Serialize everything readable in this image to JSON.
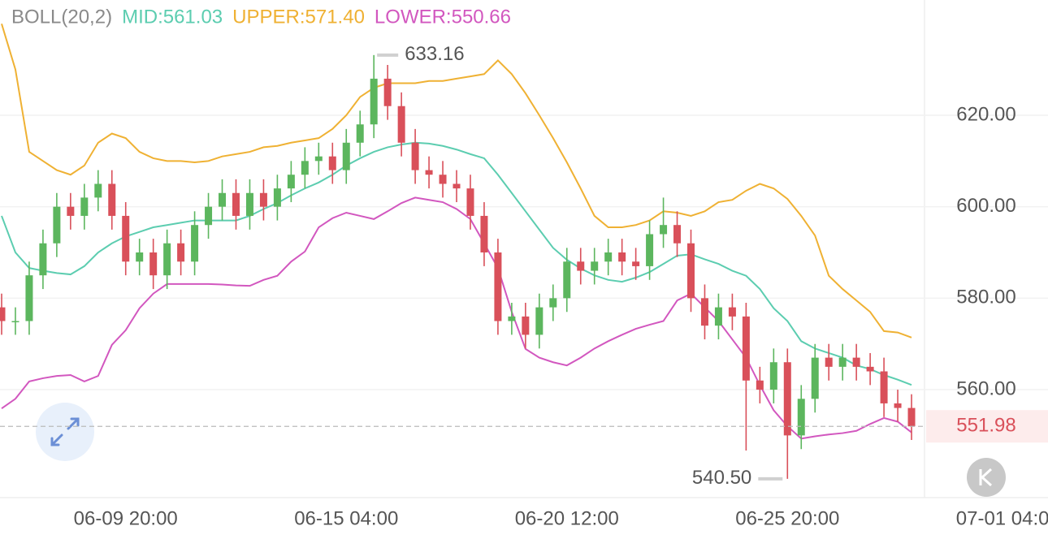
{
  "chart_data": {
    "type": "candlestick",
    "indicator": "BOLL(20,2)",
    "categories": [
      null,
      null,
      null,
      null,
      null,
      null,
      null,
      null,
      null,
      null,
      null,
      null,
      null,
      null,
      null,
      null,
      null,
      null,
      null,
      null,
      null,
      null,
      null,
      null,
      null,
      null,
      null,
      null,
      null,
      null,
      null,
      null,
      null,
      null,
      null,
      null,
      null,
      null,
      null,
      null,
      null,
      null,
      null,
      null,
      null,
      null,
      null,
      null,
      null,
      null,
      null,
      null,
      null,
      null,
      null,
      null,
      null,
      null,
      null,
      null,
      null,
      null,
      null,
      null,
      null,
      null,
      null
    ],
    "open": [
      578,
      575,
      575,
      585,
      592,
      600,
      598,
      602,
      605,
      598,
      588,
      590,
      585,
      592,
      588,
      596,
      600,
      603,
      598,
      603,
      600,
      604,
      607,
      610,
      611,
      608,
      614,
      618,
      628,
      622,
      614,
      608,
      607,
      605,
      604,
      598,
      590,
      575,
      576,
      572,
      578,
      580,
      588,
      586,
      588,
      590,
      588,
      587,
      594,
      596,
      592,
      580,
      574,
      578,
      576,
      562,
      560,
      566,
      550,
      558,
      567,
      565,
      567,
      565,
      564,
      557,
      556
    ],
    "high": [
      581,
      578,
      588,
      595,
      603,
      603,
      605,
      608,
      608,
      601,
      593,
      593,
      595,
      595,
      599,
      603,
      606,
      606,
      606,
      606,
      607,
      610,
      613,
      614,
      614,
      617,
      621,
      633.16,
      631,
      625,
      617,
      611,
      610,
      608,
      607,
      601,
      593,
      579,
      579,
      581,
      583,
      591,
      591,
      591,
      593,
      593,
      591,
      597,
      602,
      599,
      595,
      583,
      581,
      581,
      579,
      565,
      569,
      569,
      561,
      570,
      570,
      570,
      570,
      568,
      567,
      560,
      559
    ],
    "low": [
      572,
      572,
      572,
      582,
      589,
      595,
      595,
      599,
      595,
      585,
      585,
      582,
      582,
      585,
      585,
      593,
      597,
      595,
      595,
      597,
      597,
      601,
      604,
      607,
      605,
      605,
      611,
      615,
      619,
      611,
      605,
      604,
      602,
      601,
      595,
      587,
      572,
      572,
      569,
      569,
      575,
      577,
      583,
      583,
      585,
      585,
      584,
      584,
      591,
      589,
      577,
      571,
      571,
      573,
      546.7,
      557,
      557,
      540.5,
      547,
      555,
      562,
      562,
      562,
      561,
      554,
      553,
      549
    ],
    "close": [
      575,
      575,
      585,
      592,
      600,
      598,
      602,
      605,
      598,
      588,
      590,
      585,
      592,
      588,
      596,
      600,
      603,
      598,
      603,
      600,
      604,
      607,
      610,
      611,
      608,
      614,
      618,
      628,
      622,
      614,
      608,
      607,
      605,
      604,
      598,
      590,
      575,
      576,
      572,
      578,
      580,
      588,
      586,
      588,
      590,
      588,
      587,
      594,
      596,
      592,
      580,
      574,
      578,
      576,
      562,
      560,
      566,
      550,
      558,
      567,
      565,
      567,
      565,
      564,
      557,
      556,
      551.98
    ],
    "up_color": "#5cb65e",
    "down_color": "#d9505a",
    "series": [
      {
        "name": "MID:561.03",
        "color": "#5ccdb0",
        "values": [
          598,
          590,
          586.6,
          586,
          585.5,
          585.2,
          587,
          590,
          592,
          593.5,
          594.5,
          595.5,
          596,
          596.5,
          597,
          597,
          597,
          597,
          598,
          599.5,
          600.8,
          602.5,
          604,
          605.3,
          607,
          609,
          610.6,
          612,
          613,
          613.6,
          614,
          613.8,
          613.3,
          612.5,
          611.5,
          610.6,
          607,
          603,
          599,
          595,
          591,
          588.4,
          586.5,
          585,
          584,
          583.6,
          584.5,
          585.7,
          587.5,
          589.3,
          589.6,
          588.5,
          587.5,
          586,
          584.9,
          582,
          577.8,
          575,
          570.6,
          569,
          568,
          567,
          565.3,
          564.5,
          563.2,
          562.2,
          561.03
        ]
      },
      {
        "name": "UPPER:571.40",
        "color": "#efb133",
        "values": [
          640,
          630,
          612,
          610,
          608,
          607,
          609,
          614,
          616,
          615,
          612,
          610.6,
          610,
          610,
          609.7,
          610,
          611,
          611.5,
          612,
          613,
          613.3,
          614,
          614.5,
          615,
          617,
          620,
          624,
          626,
          627,
          627,
          627,
          627.5,
          627.5,
          628,
          628.5,
          629,
          632,
          629,
          624.8,
          620,
          615,
          609.7,
          604,
          598,
          595.5,
          595.5,
          596,
          597,
          599,
          598.7,
          598,
          599,
          601,
          601.5,
          603.5,
          605,
          604,
          601.7,
          598,
          593.7,
          584.9,
          582,
          579.5,
          577,
          572.8,
          572.5,
          571.4
        ]
      },
      {
        "name": "LOWER:550.66",
        "color": "#d257bf",
        "values": [
          555.9,
          558,
          561.8,
          562.5,
          563,
          563.2,
          561.8,
          563,
          569.8,
          573,
          577.8,
          581,
          583.1,
          583.1,
          583.1,
          583.1,
          583,
          582.8,
          582.7,
          584,
          584.9,
          588,
          590.2,
          595.5,
          597.5,
          598.7,
          598,
          597.3,
          599,
          600.8,
          602,
          601.5,
          601,
          599.5,
          597.3,
          592,
          586.6,
          577,
          568.9,
          567,
          566,
          565.3,
          567,
          569,
          570.6,
          572,
          573.3,
          574.2,
          575,
          579.5,
          581,
          578,
          575,
          571,
          567,
          561,
          555.5,
          552,
          549.3,
          549.8,
          550.2,
          550.5,
          551,
          552.5,
          553.8,
          553,
          550.66
        ]
      }
    ],
    "ylim": [
      536.4,
      645.2
    ],
    "yticks": [
      {
        "value": 620,
        "label": "620.00"
      },
      {
        "value": 600,
        "label": "600.00"
      },
      {
        "value": 580,
        "label": "580.00"
      },
      {
        "value": 560,
        "label": "560.00"
      }
    ],
    "xticks": [
      {
        "value": 9,
        "label": "06-09 20:00"
      },
      {
        "value": 25,
        "label": "06-15 04:00"
      },
      {
        "value": 41,
        "label": "06-20 12:00"
      },
      {
        "value": 57,
        "label": "06-25 20:00"
      },
      {
        "value": 73,
        "label": "07-01 04:00"
      }
    ],
    "last_price": 551.98,
    "high_label": "633.16",
    "low_label": "540.50",
    "grid": true
  }
}
